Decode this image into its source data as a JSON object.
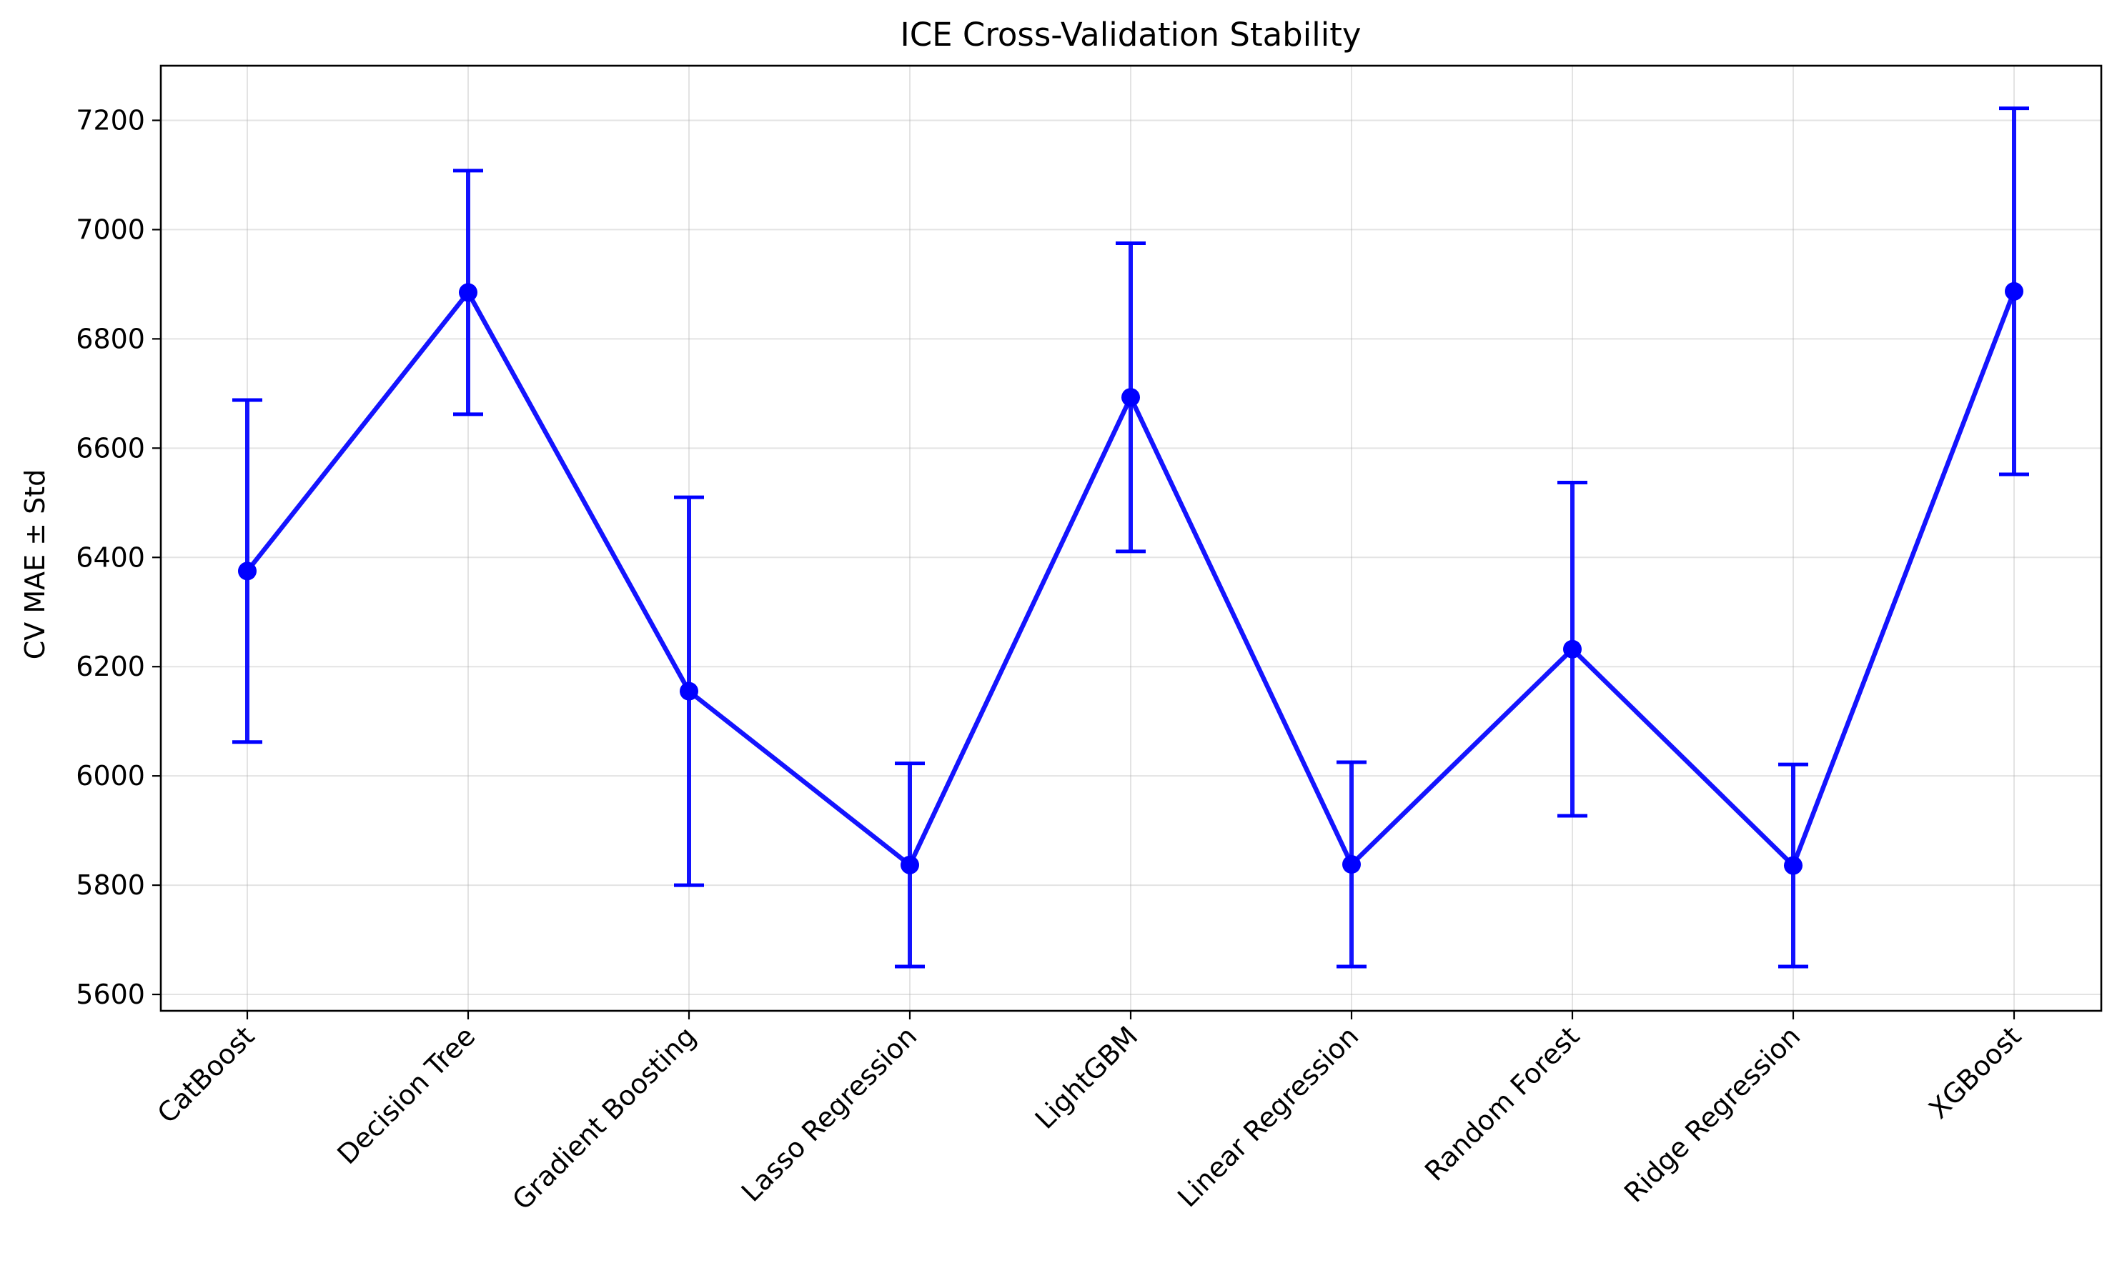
{
  "chart_data": {
    "type": "line",
    "title": "ICE Cross-Validation Stability",
    "xlabel": "",
    "ylabel": "CV MAE ± Std",
    "categories": [
      "CatBoost",
      "Decision Tree",
      "Gradient Boosting",
      "Lasso Regression",
      "LightGBM",
      "Linear Regression",
      "Random Forest",
      "Ridge Regression",
      "XGBoost"
    ],
    "series": [
      {
        "values": [
          6375,
          6885,
          6155,
          5837,
          6693,
          5838,
          6232,
          5836,
          6887
        ],
        "error": [
          313,
          223,
          355,
          186,
          282,
          187,
          305,
          185,
          335
        ]
      }
    ],
    "ylim": [
      5570,
      7300
    ],
    "yticks": [
      5600,
      5800,
      6000,
      6200,
      6400,
      6600,
      6800,
      7000,
      7200
    ],
    "grid": true,
    "legend": "none",
    "color": "#0000ff"
  }
}
